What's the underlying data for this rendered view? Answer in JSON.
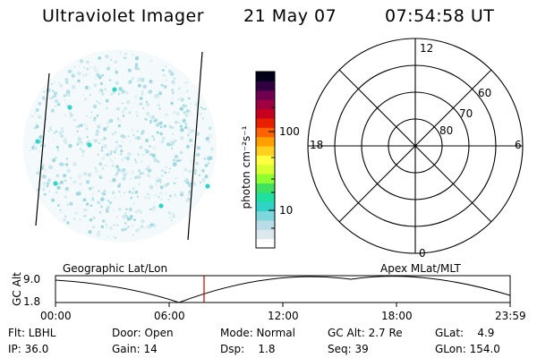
{
  "header": {
    "instrument": "Ultraviolet Imager",
    "date": "21 May 07",
    "time": "07:54:58 UT"
  },
  "colorbar": {
    "unit_label": "photon cm⁻²s⁻¹",
    "ticks": [
      "100",
      "10"
    ],
    "colors": [
      "#ffffff",
      "#dde8ee",
      "#b8dde6",
      "#7fd6dc",
      "#33d2c8",
      "#20e0a0",
      "#40e060",
      "#90ff30",
      "#d8ff30",
      "#ffff40",
      "#ffd020",
      "#ffa000",
      "#ff6000",
      "#e82000",
      "#c80020",
      "#a00040",
      "#700050",
      "#300040",
      "#000018"
    ]
  },
  "polar_plot": {
    "mlt_labels": {
      "top": "12",
      "left": "18",
      "right": "6",
      "bottom": "0"
    },
    "lat_labels": [
      "60",
      "70",
      "80"
    ]
  },
  "timeline": {
    "left_label": "Geographic Lat/Lon",
    "right_label": "Apex MLat/MLT",
    "axis_title": "GC Alt",
    "y_max": "9.0",
    "y_min": "1.8",
    "ticks": [
      "00:00",
      "06:00",
      "12:00",
      "18:00",
      "23:59"
    ],
    "marker_color": "#cc0000"
  },
  "status": {
    "flt": "Flt: LBHL",
    "ip": "IP: 36.0",
    "door": "Door: Open",
    "gain": "Gain: 14",
    "mode": "Mode: Normal",
    "dsp": "Dsp:    1.8",
    "gcalt": "GC Alt: 2.7 Re",
    "seq": "Seq: 39",
    "glat": "GLat:    4.9",
    "glon": "GLon: 154.0"
  }
}
